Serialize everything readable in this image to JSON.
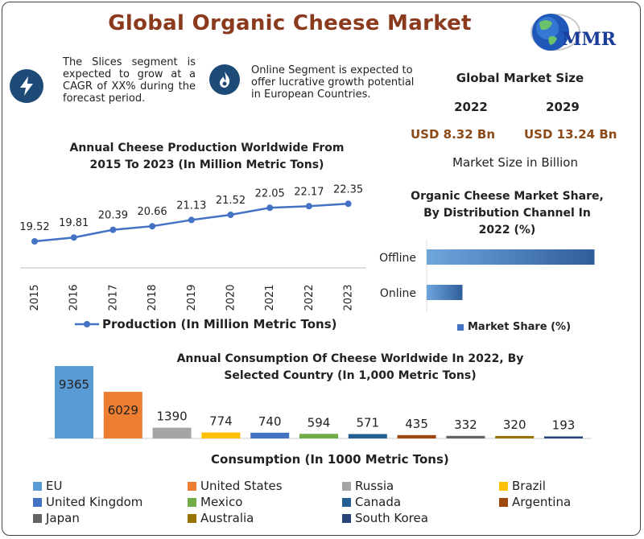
{
  "title": "Global Organic Cheese Market",
  "logo_text": "MMR",
  "notes": [
    {
      "icon": "lightning-icon",
      "text": "The Slices segment is expected to grow at a CAGR of XX% during the forecast period."
    },
    {
      "icon": "flame-icon",
      "text": "Online Segment is expected to offer lucrative growth potential in European Countries."
    }
  ],
  "market_size": {
    "heading": "Global Market Size",
    "year_a": "2022",
    "year_b": "2029",
    "value_a": "USD 8.32 Bn",
    "value_b": "USD 13.24 Bn",
    "caption": "Market Size in Billion"
  },
  "colors": {
    "title": "#8b3a1e",
    "line": "#4472c4",
    "bar_blue": "#4472c4",
    "eu": "#5b9bd5",
    "united_states": "#ed7d31",
    "russia": "#a5a5a5",
    "brazil": "#ffc000",
    "money": "#8b4a18"
  },
  "chart_data": [
    {
      "type": "line",
      "title": "Annual Cheese Production Worldwide From 2015 To 2023 (In Million Metric Tons)",
      "x": [
        "2015",
        "2016",
        "2017",
        "2018",
        "2019",
        "2020",
        "2021",
        "2022",
        "2023"
      ],
      "series": [
        {
          "name": "Production (In Million Metric Tons)",
          "values": [
            19.52,
            19.81,
            20.39,
            20.66,
            21.13,
            21.52,
            22.05,
            22.17,
            22.35
          ]
        }
      ],
      "legend_position": "bottom",
      "grid": false
    },
    {
      "type": "bar",
      "orientation": "horizontal",
      "title": "Organic Cheese Market Share, By Distribution Channel In 2022 (%)",
      "categories": [
        "Offline",
        "Online"
      ],
      "series": [
        {
          "name": "Market Share (%)",
          "values": [
            75,
            16
          ]
        }
      ],
      "xlim": [
        0,
        100
      ],
      "legend_position": "bottom",
      "grid": false
    },
    {
      "type": "bar",
      "title": "Annual Consumption Of Cheese Worldwide In 2022, By Selected Country (In 1,000 Metric Tons)",
      "xlabel": "Consumption (In 1000 Metric Tons)",
      "categories": [
        "EU",
        "United States",
        "Russia",
        "Brazil",
        "United Kingdom",
        "Mexico",
        "Canada",
        "Argentina",
        "Japan",
        "Australia",
        "South Korea"
      ],
      "values": [
        9365,
        6029,
        1390,
        774,
        740,
        594,
        571,
        435,
        332,
        320,
        193
      ],
      "colors": [
        "#5b9bd5",
        "#ed7d31",
        "#a5a5a5",
        "#ffc000",
        "#4472c4",
        "#70ad47",
        "#255e91",
        "#9e480e",
        "#636363",
        "#997300",
        "#264478"
      ],
      "legend_position": "bottom",
      "grid": false
    }
  ]
}
